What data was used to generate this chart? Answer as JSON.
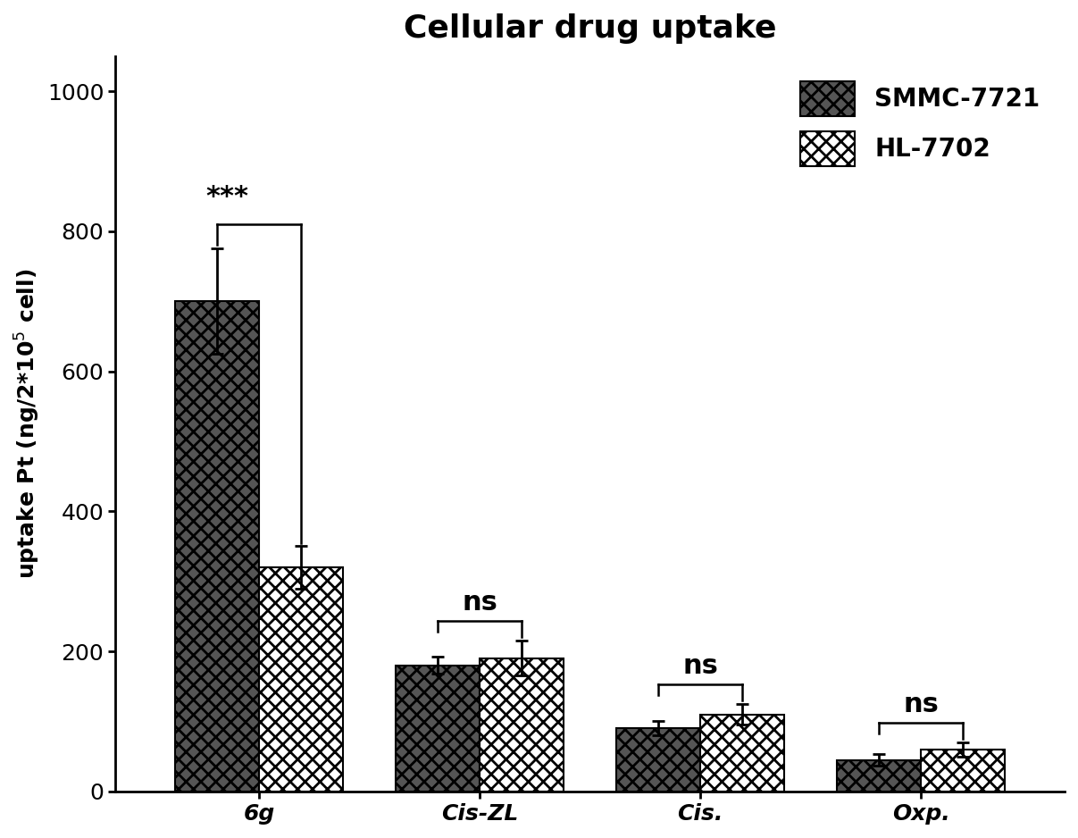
{
  "title": "Cellular drug uptake",
  "categories": [
    "6g",
    "Cis-ZL",
    "Cis.",
    "Oxp."
  ],
  "smmc_values": [
    700,
    180,
    90,
    45
  ],
  "hl_values": [
    320,
    190,
    110,
    60
  ],
  "smmc_errors": [
    75,
    12,
    10,
    8
  ],
  "hl_errors": [
    30,
    25,
    15,
    10
  ],
  "ylim": [
    0,
    1050
  ],
  "yticks": [
    0,
    200,
    400,
    600,
    800,
    1000
  ],
  "bar_width": 0.38,
  "smmc_label": "SMMC-7721",
  "hl_label": "HL-7702",
  "significance": [
    "***",
    "ns",
    "ns",
    "ns"
  ],
  "background_color": "#ffffff",
  "title_fontsize": 26,
  "label_fontsize": 18,
  "tick_fontsize": 18,
  "legend_fontsize": 20
}
